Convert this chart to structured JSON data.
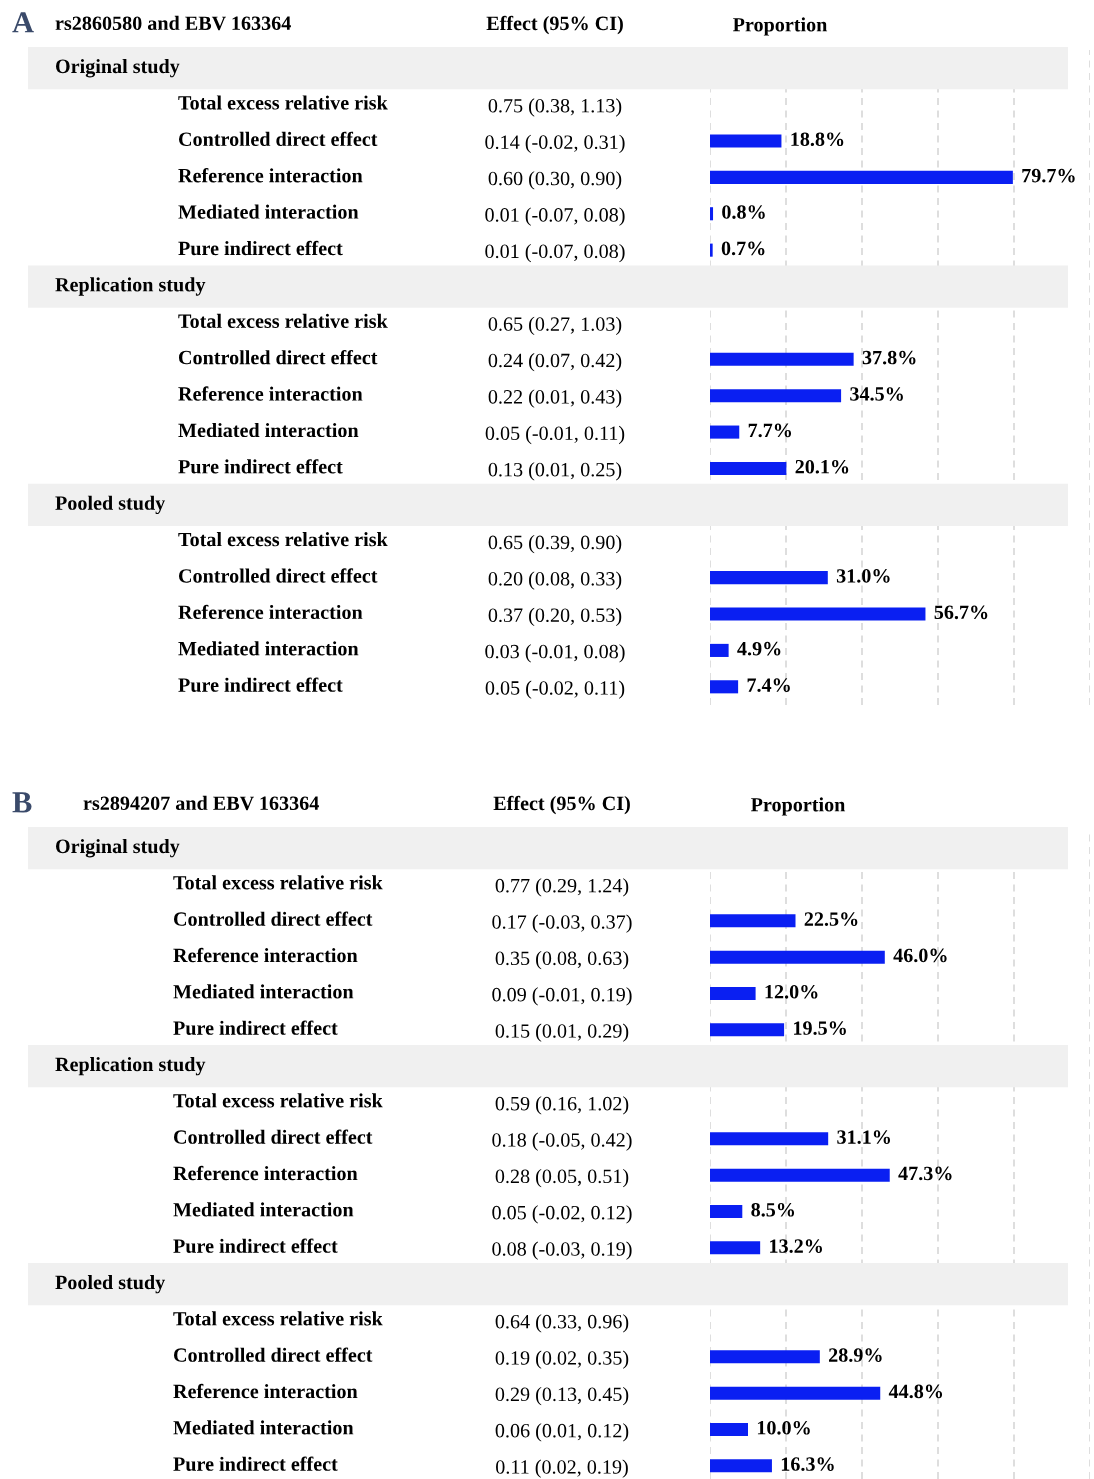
{
  "chart_data": [
    {
      "type": "bar",
      "orientation": "horizontal",
      "title": "rs2860580 and EBV 163364",
      "xlabel": "Proportion",
      "y2label": "Effect (95% CI)",
      "annotations": [
        "A",
        "Original study",
        "Replication study",
        "Pooled study"
      ],
      "categories": [
        null,
        "Total excess relative risk",
        "Controlled direct effect",
        "Reference interaction",
        "Mediated interaction",
        "Pure indirect effect",
        null,
        "Total excess relative risk",
        "Controlled direct effect",
        "Reference interaction",
        "Mediated interaction",
        "Pure indirect effect",
        null,
        "Total excess relative risk",
        "Controlled direct effect",
        "Reference interaction",
        "Mediated interaction",
        "Pure indirect effect"
      ],
      "y2_categories": [
        null,
        "0.75 (0.38, 1.13)",
        "0.14 (-0.02, 0.31)",
        "0.60 (0.30, 0.90)",
        "0.01 (-0.07, 0.08)",
        "0.01 (-0.07, 0.08)",
        null,
        "0.65 (0.27, 1.03)",
        "0.24 (0.07, 0.42)",
        "0.22 (0.01, 0.43)",
        "0.05 (-0.01, 0.11)",
        "0.13 (0.01, 0.25)",
        null,
        "0.65 (0.39, 0.90)",
        "0.20 (0.08, 0.33)",
        "0.37 (0.20, 0.53)",
        "0.03 (-0.01, 0.08)",
        "0.05 (-0.02, 0.11)"
      ],
      "values": [
        null,
        null,
        18.8,
        79.7,
        0.8,
        0.7,
        null,
        null,
        37.8,
        34.5,
        7.7,
        20.1,
        null,
        null,
        31.0,
        56.7,
        4.9,
        7.4
      ],
      "value_labels": [
        null,
        null,
        "18.8%",
        "79.7%",
        "0.8%",
        "0.7%",
        null,
        null,
        "37.8%",
        "34.5%",
        "7.7%",
        "20.1%",
        null,
        null,
        "31.0%",
        "56.7%",
        "4.9%",
        "7.4%"
      ],
      "color": "#0a1ff2",
      "xlim": [
        0,
        100
      ],
      "xticks": [
        {
          "value": 0,
          "label": null
        },
        {
          "value": 20,
          "label": null
        },
        {
          "value": 40,
          "label": null
        },
        {
          "value": 60,
          "label": null
        },
        {
          "value": 80,
          "label": null
        },
        {
          "value": 100,
          "label": null
        }
      ],
      "grid": "x",
      "tick_labels": "y"
    },
    {
      "type": "bar",
      "orientation": "horizontal",
      "title": "rs2894207 and EBV 163364",
      "xlabel": "Proportion",
      "y2label": "Effect (95% CI)",
      "annotations": [
        "B",
        "Original study",
        "Replication study",
        "Pooled study"
      ],
      "categories": [
        null,
        "Total excess relative risk",
        "Controlled direct effect",
        "Reference interaction",
        "Mediated interaction",
        "Pure indirect effect",
        null,
        "Total excess relative risk",
        "Controlled direct effect",
        "Reference interaction",
        "Mediated interaction",
        "Pure indirect effect",
        null,
        "Total excess relative risk",
        "Controlled direct effect",
        "Reference interaction",
        "Mediated interaction",
        "Pure indirect effect"
      ],
      "y2_categories": [
        null,
        "0.77 (0.29, 1.24)",
        "0.17 (-0.03, 0.37)",
        "0.35 (0.08, 0.63)",
        "0.09 (-0.01, 0.19)",
        "0.15 (0.01, 0.29)",
        null,
        "0.59 (0.16, 1.02)",
        "0.18 (-0.05, 0.42)",
        "0.28 (0.05, 0.51)",
        "0.05 (-0.02, 0.12)",
        "0.08 (-0.03, 0.19)",
        null,
        "0.64 (0.33, 0.96)",
        "0.19 (0.02, 0.35)",
        "0.29 (0.13, 0.45)",
        "0.06 (0.01, 0.12)",
        "0.11 (0.02, 0.19)"
      ],
      "values": [
        null,
        null,
        22.5,
        46.0,
        12.0,
        19.5,
        null,
        null,
        31.1,
        47.3,
        8.5,
        13.2,
        null,
        null,
        28.9,
        44.8,
        10.0,
        16.3
      ],
      "value_labels": [
        null,
        null,
        "22.5%",
        "46.0%",
        "12.0%",
        "19.5%",
        null,
        null,
        "31.1%",
        "47.3%",
        "8.5%",
        "13.2%",
        null,
        null,
        "28.9%",
        "44.8%",
        "10.0%",
        "16.3%"
      ],
      "color": "#0a1ff2",
      "xlim": [
        0,
        100
      ],
      "xticks": [
        {
          "value": 0,
          "label": null
        },
        {
          "value": 20,
          "label": null
        },
        {
          "value": 40,
          "label": null
        },
        {
          "value": 60,
          "label": null
        },
        {
          "value": 80,
          "label": null
        },
        {
          "value": 100,
          "label": null
        }
      ],
      "grid": "x",
      "tick_labels": "y"
    }
  ]
}
